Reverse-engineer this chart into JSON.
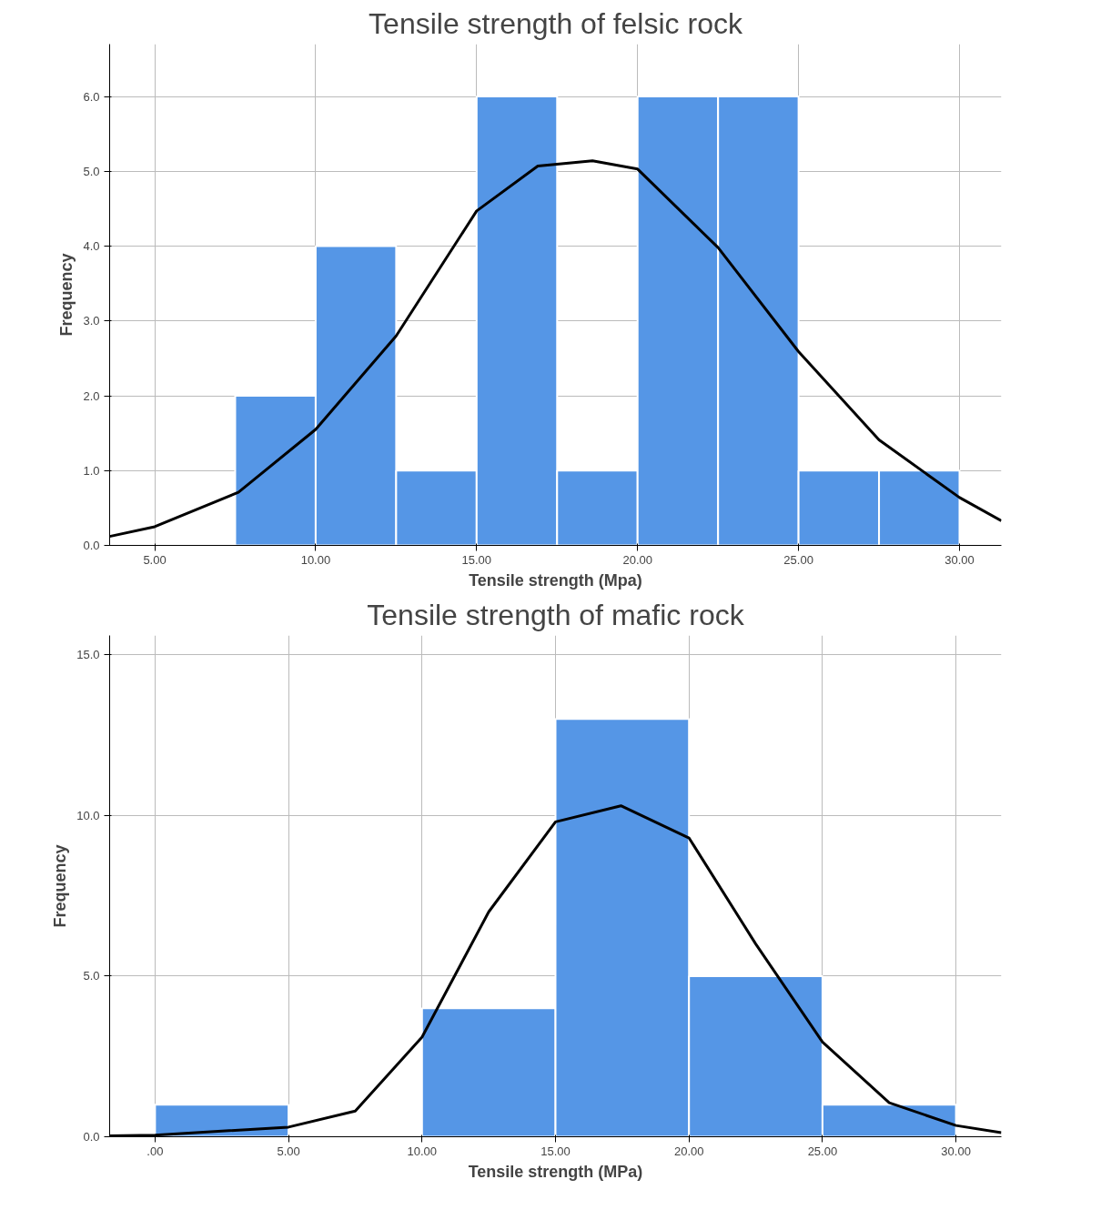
{
  "chart_data": [
    {
      "type": "histogram",
      "title": "Tensile strength of felsic rock",
      "xlabel": "Tensile strength (Mpa)",
      "ylabel": "Frequency",
      "bins": [
        7.5,
        10,
        12.5,
        15,
        17.5,
        20,
        22.5,
        25,
        27.5,
        30
      ],
      "values": [
        2,
        4,
        1,
        6,
        1,
        6,
        6,
        1,
        1
      ],
      "color": "#5596e6",
      "xlim": [
        3.6,
        31.3
      ],
      "ylim": [
        0,
        6.7
      ],
      "xticks": [
        {
          "value": 5,
          "label": "5.00"
        },
        {
          "value": 10,
          "label": "10.00"
        },
        {
          "value": 15,
          "label": "15.00"
        },
        {
          "value": 20,
          "label": "20.00"
        },
        {
          "value": 25,
          "label": "25.00"
        },
        {
          "value": 30,
          "label": "30.00"
        }
      ],
      "yticks": [
        {
          "value": 0,
          "label": "0.0"
        },
        {
          "value": 1,
          "label": "1.0"
        },
        {
          "value": 2,
          "label": "2.0"
        },
        {
          "value": 3,
          "label": "3.0"
        },
        {
          "value": 4,
          "label": "4.0"
        },
        {
          "value": 5,
          "label": "5.0"
        },
        {
          "value": 6,
          "label": "6.0"
        }
      ],
      "grid": true,
      "series": [
        {
          "type": "line",
          "color": "#000000",
          "x": [
            3.6,
            5,
            7.6,
            10,
            12.5,
            15,
            16.9,
            18.6,
            20,
            22.5,
            25,
            27.5,
            30,
            31.3
          ],
          "values": [
            0.12,
            0.25,
            0.71,
            1.55,
            2.8,
            4.47,
            5.07,
            5.14,
            5.03,
            3.98,
            2.59,
            1.41,
            0.64,
            0.33
          ]
        }
      ]
    },
    {
      "type": "histogram",
      "title": "Tensile strength of mafic rock",
      "xlabel": "Tensile strength (MPa)",
      "ylabel": "Frequency",
      "bins": [
        0,
        5,
        10,
        15,
        20,
        25,
        30
      ],
      "values": [
        1,
        0,
        4,
        13,
        5,
        1
      ],
      "color": "#5596e6",
      "xlim": [
        -1.7,
        31.7
      ],
      "ylim": [
        0,
        15.6
      ],
      "xticks": [
        {
          "value": 0,
          "label": ".00"
        },
        {
          "value": 5,
          "label": "5.00"
        },
        {
          "value": 10,
          "label": "10.00"
        },
        {
          "value": 15,
          "label": "15.00"
        },
        {
          "value": 20,
          "label": "20.00"
        },
        {
          "value": 25,
          "label": "25.00"
        },
        {
          "value": 30,
          "label": "30.00"
        }
      ],
      "yticks": [
        {
          "value": 0,
          "label": "0.0"
        },
        {
          "value": 5,
          "label": "5.0"
        },
        {
          "value": 10,
          "label": "10.0"
        },
        {
          "value": 15,
          "label": "15.0"
        }
      ],
      "grid": true,
      "series": [
        {
          "type": "line",
          "color": "#000000",
          "x": [
            -1.7,
            0,
            5,
            7.5,
            10,
            12.5,
            15,
            17.45,
            20,
            22.5,
            25,
            27.5,
            30,
            31.7
          ],
          "values": [
            0.03,
            0.05,
            0.3,
            0.8,
            3.1,
            7.0,
            9.8,
            10.3,
            9.3,
            6.0,
            2.95,
            1.06,
            0.35,
            0.13
          ]
        }
      ]
    }
  ]
}
